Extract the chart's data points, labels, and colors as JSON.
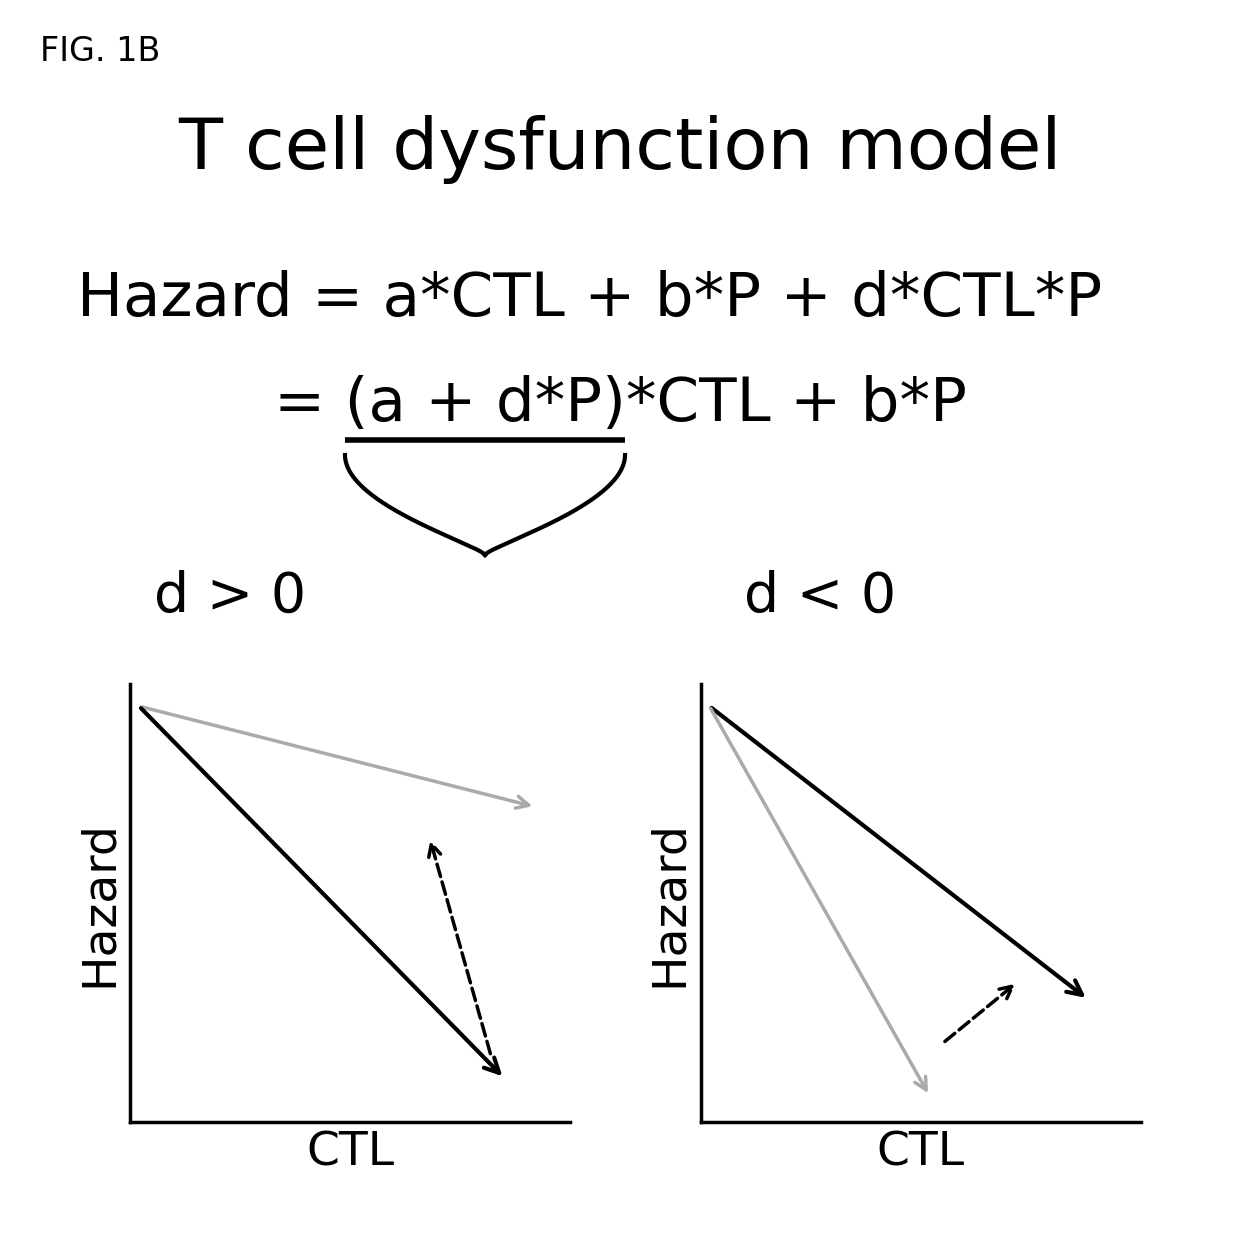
{
  "fig_label": "FIG. 1B",
  "title": "T cell dysfunction model",
  "eq1": "Hazard = a*CTL + b*P + d*CTL*P",
  "eq2": "= (a + d*P)*CTL + b*P",
  "label_d_gt": "d > 0",
  "label_d_lt": "d < 0",
  "xlabel": "CTL",
  "ylabel": "Hazard",
  "bg_color": "#ffffff",
  "text_color": "#000000",
  "gray_color": "#aaaaaa",
  "black_color": "#000000",
  "title_fontsize": 52,
  "eq_fontsize": 44,
  "label_fontsize": 40,
  "axis_label_fontsize": 34,
  "fig_label_fontsize": 24
}
